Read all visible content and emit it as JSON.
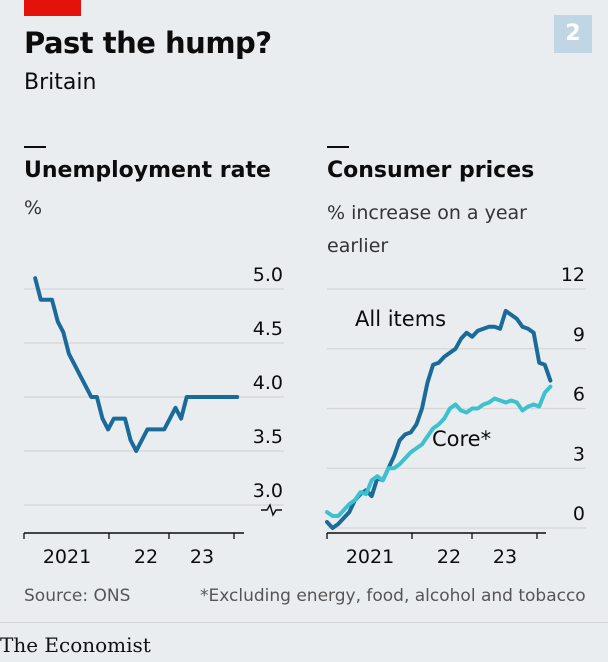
{
  "header": {
    "title": "Past the hump?",
    "subtitle": "Britain",
    "badge": "2"
  },
  "footer": {
    "source": "Source: ONS",
    "footnote": "*Excluding energy, food, alcohol and tobacco",
    "logo": "The Economist"
  },
  "colors": {
    "dark_line": "#1a6b9a",
    "light_line": "#3ec1cf",
    "grid": "#d6d6d6",
    "brand_red": "#e3120b"
  },
  "chart_data": [
    {
      "type": "line",
      "title": "Unemployment rate",
      "ylabel": "%",
      "ylim": [
        3.0,
        5.0
      ],
      "y_ticks": [
        "5.0",
        "4.5",
        "4.0",
        "3.5",
        "3.0"
      ],
      "x_ticks": [
        "2021",
        "22",
        "23"
      ],
      "broken_axis": true,
      "x_range": [
        "2020-01",
        "2023-06"
      ],
      "series": [
        {
          "x": [
            "2020-03",
            "2020-04",
            "2020-05",
            "2020-06",
            "2020-07",
            "2020-08",
            "2020-09",
            "2020-10",
            "2020-11",
            "2020-12",
            "2021-01",
            "2021-02",
            "2021-03",
            "2021-04",
            "2021-05",
            "2021-06",
            "2021-07",
            "2021-08",
            "2021-09",
            "2021-10",
            "2021-11",
            "2021-12",
            "2022-01",
            "2022-02",
            "2022-03",
            "2022-04",
            "2022-05",
            "2022-06",
            "2022-07",
            "2022-08",
            "2022-09",
            "2022-10",
            "2022-11",
            "2022-12",
            "2023-01",
            "2023-02",
            "2023-03"
          ],
          "values": [
            5.1,
            4.9,
            4.9,
            4.9,
            4.7,
            4.6,
            4.4,
            4.3,
            4.2,
            4.1,
            4.0,
            4.0,
            3.8,
            3.7,
            3.8,
            3.8,
            3.8,
            3.6,
            3.5,
            3.6,
            3.7,
            3.7,
            3.7,
            3.7,
            3.8,
            3.9,
            3.8,
            4.0,
            4.0,
            4.0,
            4.0,
            4.0,
            4.0,
            4.0,
            4.0,
            4.0,
            4.0
          ]
        }
      ]
    },
    {
      "type": "line",
      "title": "Consumer prices",
      "ylabel": "% increase on a year earlier",
      "ylim": [
        0,
        12
      ],
      "y_ticks": [
        "12",
        "9",
        "6",
        "3",
        "0"
      ],
      "x_ticks": [
        "2021",
        "22",
        "23"
      ],
      "x_range": [
        "2020-01",
        "2023-06"
      ],
      "series": [
        {
          "name": "All items",
          "x": [
            "2020-01",
            "2020-02",
            "2020-03",
            "2020-04",
            "2020-05",
            "2020-06",
            "2020-07",
            "2020-08",
            "2020-09",
            "2020-10",
            "2020-11",
            "2020-12",
            "2021-01",
            "2021-02",
            "2021-03",
            "2021-04",
            "2021-05",
            "2021-06",
            "2021-07",
            "2021-08",
            "2021-09",
            "2021-10",
            "2021-11",
            "2021-12",
            "2022-01",
            "2022-02",
            "2022-03",
            "2022-04",
            "2022-05",
            "2022-06",
            "2022-07",
            "2022-08",
            "2022-09",
            "2022-10",
            "2022-11",
            "2022-12",
            "2023-01",
            "2023-02",
            "2023-03",
            "2023-04",
            "2023-05"
          ],
          "values": [
            0.3,
            0.0,
            0.2,
            0.5,
            0.8,
            1.4,
            1.7,
            1.9,
            1.6,
            2.5,
            2.4,
            3.0,
            3.6,
            4.4,
            4.7,
            4.8,
            5.2,
            6.0,
            7.3,
            8.2,
            8.3,
            8.6,
            8.8,
            9.0,
            9.5,
            9.8,
            9.6,
            9.9,
            10.0,
            10.1,
            10.1,
            10.0,
            10.9,
            10.7,
            10.5,
            10.1,
            10.0,
            9.8,
            8.3,
            8.2,
            7.4
          ]
        },
        {
          "name": "Core*",
          "x": [
            "2020-01",
            "2020-02",
            "2020-03",
            "2020-04",
            "2020-05",
            "2020-06",
            "2020-07",
            "2020-08",
            "2020-09",
            "2020-10",
            "2020-11",
            "2020-12",
            "2021-01",
            "2021-02",
            "2021-03",
            "2021-04",
            "2021-05",
            "2021-06",
            "2021-07",
            "2021-08",
            "2021-09",
            "2021-10",
            "2021-11",
            "2021-12",
            "2022-01",
            "2022-02",
            "2022-03",
            "2022-04",
            "2022-05",
            "2022-06",
            "2022-07",
            "2022-08",
            "2022-09",
            "2022-10",
            "2022-11",
            "2022-12",
            "2023-01",
            "2023-02",
            "2023-03",
            "2023-04",
            "2023-05"
          ],
          "values": [
            0.8,
            0.6,
            0.6,
            0.9,
            1.2,
            1.4,
            1.8,
            1.7,
            2.4,
            2.6,
            2.4,
            3.0,
            3.0,
            3.2,
            3.5,
            3.8,
            4.0,
            4.2,
            4.6,
            5.0,
            5.2,
            5.5,
            6.0,
            6.2,
            5.9,
            5.8,
            6.0,
            6.0,
            6.2,
            6.3,
            6.5,
            6.4,
            6.3,
            6.4,
            6.3,
            5.9,
            6.1,
            6.2,
            6.1,
            6.8,
            7.1
          ]
        }
      ]
    }
  ]
}
